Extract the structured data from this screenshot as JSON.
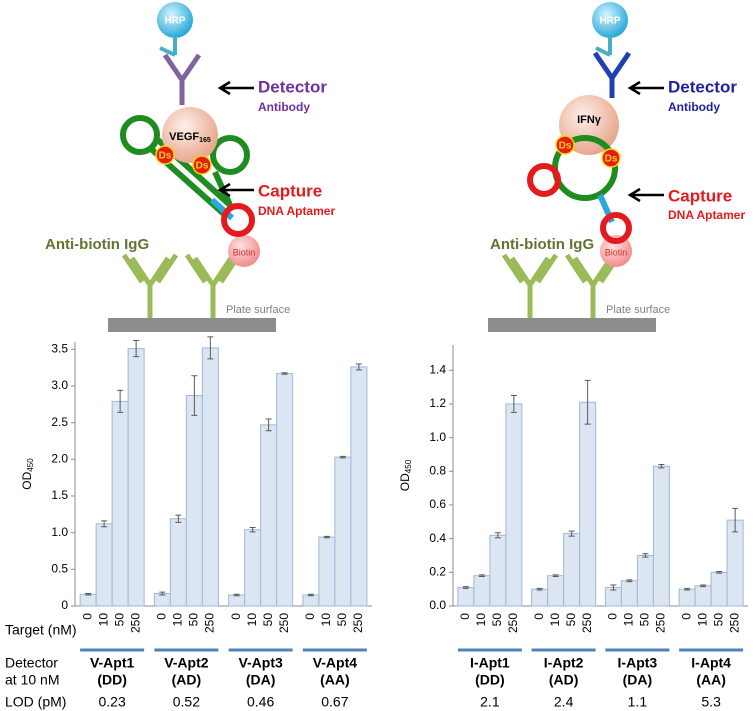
{
  "diagrams": [
    {
      "hrp": "HRP",
      "detector": "Detector",
      "antibody": "Antibody",
      "target": "VEGF",
      "target_sub": "165",
      "ds": "Ds",
      "capture": "Capture",
      "aptamer": "DNA Aptamer",
      "igg": "Anti-biotin IgG",
      "biotin": "Biotin",
      "plate": "Plate surface"
    },
    {
      "hrp": "HRP",
      "detector": "Detector",
      "antibody": "Antibody",
      "target": "IFNγ",
      "ds": "Ds",
      "capture": "Capture",
      "aptamer": "DNA Aptamer",
      "igg": "Anti-biotin IgG",
      "biotin": "Biotin",
      "plate": "Plate surface"
    }
  ],
  "chart_data": [
    {
      "type": "bar",
      "ylabel": "OD",
      "ylabel_sub": "450",
      "ylim": [
        0,
        3.6
      ],
      "yticks": [
        0,
        0.5,
        {
          "value": 1,
          "label": "1.0"
        },
        1.5,
        {
          "value": 2,
          "label": "2.0"
        },
        2.5,
        {
          "value": 3,
          "label": "3.0"
        },
        3.5
      ],
      "categories": [
        "0",
        "10",
        "50",
        "250"
      ],
      "x_label": "Target (nM)",
      "group_label": [
        "Detector",
        "at 10 nM"
      ],
      "lod_label": "LOD (pM)",
      "color": "#dce6f2",
      "edge_color": "#9fb8d8",
      "group_line_color": "#4f81bd",
      "series": [
        {
          "name": "V-Apt1",
          "variant": "(DD)",
          "lod": 0.23,
          "values": [
            0.16,
            1.12,
            2.79,
            3.51
          ],
          "errors": [
            0.01,
            0.04,
            0.15,
            0.11
          ]
        },
        {
          "name": "V-Apt2",
          "variant": "(AD)",
          "lod": 0.52,
          "values": [
            0.17,
            1.19,
            2.87,
            3.52
          ],
          "errors": [
            0.02,
            0.05,
            0.27,
            0.15
          ]
        },
        {
          "name": "V-Apt3",
          "variant": "(DA)",
          "lod": 0.46,
          "values": [
            0.15,
            1.04,
            2.47,
            3.17
          ],
          "errors": [
            0.01,
            0.03,
            0.08,
            0.01
          ]
        },
        {
          "name": "V-Apt4",
          "variant": "(AA)",
          "lod": 0.67,
          "values": [
            0.15,
            0.94,
            2.03,
            3.26
          ],
          "errors": [
            0.01,
            0.01,
            0.01,
            0.04
          ]
        }
      ]
    },
    {
      "type": "bar",
      "ylabel": "OD",
      "ylabel_sub": "450",
      "ylim": [
        0,
        1.55
      ],
      "yticks": [
        {
          "value": 0,
          "label": "0.0"
        },
        0.2,
        0.4,
        0.6,
        0.8,
        {
          "value": 1,
          "label": "1.0"
        },
        1.2,
        1.4
      ],
      "categories": [
        "0",
        "10",
        "50",
        "250"
      ],
      "color": "#dce6f2",
      "edge_color": "#9fb8d8",
      "group_line_color": "#4f81bd",
      "series": [
        {
          "name": "I-Apt1",
          "variant": "(DD)",
          "lod": 2.1,
          "values": [
            0.11,
            0.18,
            0.42,
            1.2
          ],
          "errors": [
            0.005,
            0.005,
            0.015,
            0.05
          ]
        },
        {
          "name": "I-Apt2",
          "variant": "(AD)",
          "lod": 2.4,
          "values": [
            0.1,
            0.18,
            0.43,
            1.21
          ],
          "errors": [
            0.005,
            0.005,
            0.015,
            0.13
          ]
        },
        {
          "name": "I-Apt3",
          "variant": "(DA)",
          "lod": 1.1,
          "values": [
            0.11,
            0.15,
            0.3,
            0.83
          ],
          "errors": [
            0.015,
            0.005,
            0.01,
            0.01
          ]
        },
        {
          "name": "I-Apt4",
          "variant": "(AA)",
          "lod": 5.3,
          "values": [
            0.1,
            0.12,
            0.2,
            0.51
          ],
          "errors": [
            0.005,
            0.005,
            0.005,
            0.07
          ]
        }
      ]
    }
  ]
}
